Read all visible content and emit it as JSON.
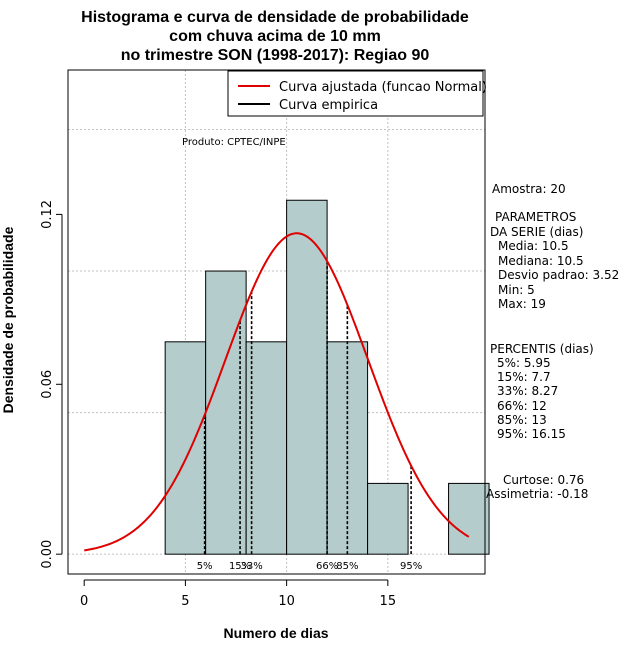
{
  "chart_data": {
    "type": "bar",
    "title": [
      "Histograma e curva de densidade de probabilidade",
      "com chuva acima de 10 mm",
      "no trimestre SON (1998-2017): Regiao 90"
    ],
    "xlabel": "Numero de dias",
    "ylabel": "Densidade de probabilidade",
    "xlim": [
      -0.8,
      19.8
    ],
    "ylim": [
      -0.007,
      0.171
    ],
    "x_ticks": [
      0,
      5,
      10,
      15
    ],
    "y_ticks": [
      0.0,
      0.06,
      0.12
    ],
    "y_tick_labels": [
      "0.00",
      "0.06",
      "0.12"
    ],
    "grid_x": [
      5,
      10,
      15
    ],
    "grid_y": [
      0.0,
      0.05,
      0.1,
      0.15
    ],
    "bins": [
      {
        "start": 4,
        "end": 6,
        "density": 0.075
      },
      {
        "start": 6,
        "end": 8,
        "density": 0.1
      },
      {
        "start": 8,
        "end": 10,
        "density": 0.075
      },
      {
        "start": 10,
        "end": 12,
        "density": 0.125
      },
      {
        "start": 12,
        "end": 14,
        "density": 0.075
      },
      {
        "start": 14,
        "end": 16,
        "density": 0.025
      },
      {
        "start": 16,
        "end": 18,
        "density": 0
      },
      {
        "start": 18,
        "end": 20,
        "density": 0.025
      }
    ],
    "bar_color": "#b4cccc",
    "normal_curve": {
      "mean": 10.5,
      "sd": 3.52,
      "x_range": [
        0,
        19
      ],
      "color": "#e00000"
    },
    "percentile_lines": [
      {
        "x": 5.95,
        "label": "5%"
      },
      {
        "x": 7.7,
        "label": "15%"
      },
      {
        "x": 8.27,
        "label": "33%"
      },
      {
        "x": 12,
        "label": "66%"
      },
      {
        "x": 13,
        "label": "85%"
      },
      {
        "x": 16.15,
        "label": "95%"
      }
    ],
    "legend": {
      "placement": "top-right",
      "entries": [
        {
          "label": "Curva ajustada (funcao Normal)",
          "color": "#e00000"
        },
        {
          "label": "Curva empirica",
          "color": "#000000"
        }
      ]
    },
    "annotation_product": "Produto: CPTEC/INPE",
    "stats": {
      "amostra": "Amostra: 20",
      "param_title": "PARAMETROS",
      "param_subtitle": "DA SERIE (dias)",
      "media": "Media: 10.5",
      "mediana": "Mediana: 10.5",
      "desvio": "Desvio padrao: 3.52",
      "min": "Min: 5",
      "max": "Max: 19",
      "pct_title": "PERCENTIS (dias)",
      "p5": "5%: 5.95",
      "p15": "15%: 7.7",
      "p33": "33%: 8.27",
      "p66": "66%: 12",
      "p85": "85%: 13",
      "p95": "95%: 16.15",
      "curtose": "Curtose: 0.76",
      "assimetria": "Assimetria: -0.18"
    }
  }
}
